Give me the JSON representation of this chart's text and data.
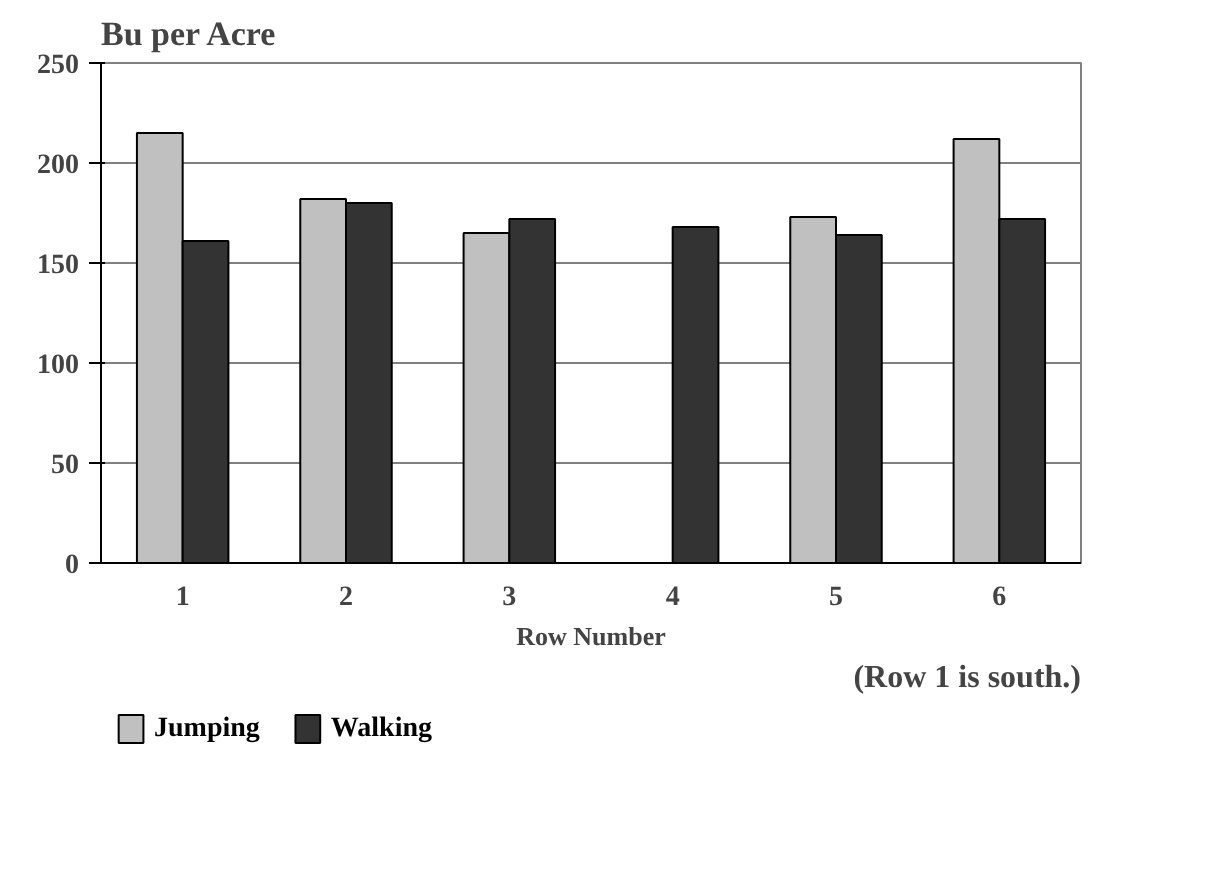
{
  "chart_data": {
    "type": "bar",
    "title": "Bu per Acre",
    "xlabel": "Row Number",
    "categories": [
      "1",
      "2",
      "3",
      "4",
      "5",
      "6"
    ],
    "series": [
      {
        "name": "Jumping",
        "color": "#c0c0c0",
        "values": [
          215,
          182,
          165,
          null,
          173,
          212
        ]
      },
      {
        "name": "Walking",
        "color": "#333333",
        "values": [
          161,
          180,
          172,
          168,
          164,
          172
        ]
      }
    ],
    "ylim": [
      0,
      250
    ],
    "yticks": [
      0,
      50,
      100,
      150,
      200,
      250
    ],
    "grid": "y",
    "legend": "bottom left",
    "annotations": [
      "(Row 1 is south.)"
    ]
  }
}
